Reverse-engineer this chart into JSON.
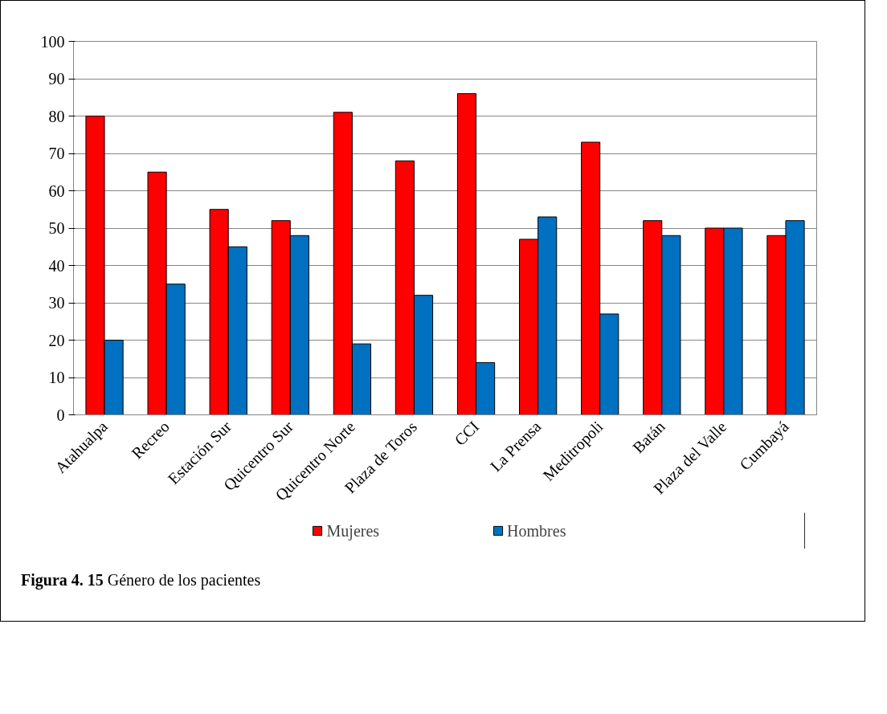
{
  "chart_data": {
    "type": "bar",
    "categories": [
      "Atahualpa",
      "Recreo",
      "Estación Sur",
      "Quicentro Sur",
      "Quicentro Norte",
      "Plaza de Toros",
      "CCI",
      "La Prensa",
      "Meditropoli",
      "Batán",
      "Plaza del Valle",
      "Cumbayá"
    ],
    "series": [
      {
        "name": "Mujeres",
        "color": "#ff0000",
        "values": [
          80,
          65,
          55,
          52,
          81,
          68,
          86,
          47,
          73,
          52,
          50,
          48
        ]
      },
      {
        "name": "Hombres",
        "color": "#0070c0",
        "values": [
          20,
          35,
          45,
          48,
          19,
          32,
          14,
          53,
          27,
          48,
          50,
          52
        ]
      }
    ],
    "ylim": [
      0,
      100
    ],
    "yticks": [
      0,
      10,
      20,
      30,
      40,
      50,
      60,
      70,
      80,
      90,
      100
    ],
    "grid": "y",
    "legend": "bottom",
    "annotations": [
      "Figura 4. 15",
      "Género de los pacientes"
    ]
  }
}
